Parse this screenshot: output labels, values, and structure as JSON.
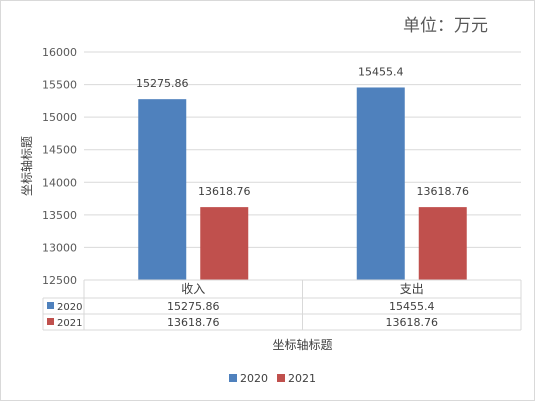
{
  "unit_label": "单位：万元",
  "chart_data": {
    "type": "bar",
    "categories": [
      "收入",
      "支出"
    ],
    "series": [
      {
        "name": "2020",
        "values": [
          15275.86,
          15455.4
        ],
        "labels": [
          "15275.86",
          "15455.4"
        ],
        "color": "#4f81bd"
      },
      {
        "name": "2021",
        "values": [
          13618.76,
          13618.76
        ],
        "labels": [
          "13618.76",
          "13618.76"
        ],
        "color": "#c0504d"
      }
    ],
    "ylim": [
      12500,
      16000
    ],
    "yticks": [
      12500,
      13000,
      13500,
      14000,
      14500,
      15000,
      15500,
      16000
    ],
    "ylabel": "坐标轴标题",
    "xlabel": "坐标轴标题",
    "grid": true,
    "data_table": true,
    "legend_position": "bottom"
  }
}
